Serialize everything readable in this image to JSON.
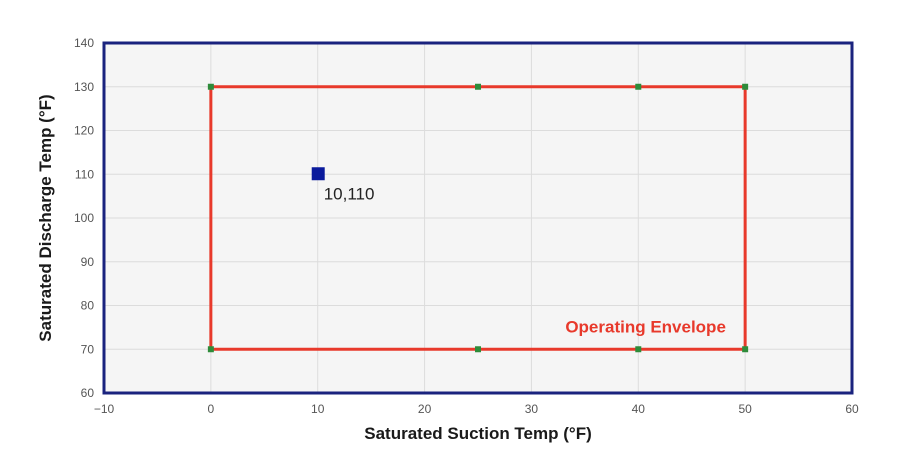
{
  "chart_data": {
    "type": "scatter",
    "title": "",
    "xlabel": "Saturated Suction Temp (°F)",
    "ylabel": "Saturated Discharge Temp (°F)",
    "xlim": [
      -10,
      60
    ],
    "ylim": [
      60,
      140
    ],
    "xticks": [
      -10,
      0,
      10,
      20,
      30,
      40,
      50,
      60
    ],
    "yticks": [
      60,
      70,
      80,
      90,
      100,
      110,
      120,
      130,
      140
    ],
    "grid": true,
    "envelope": {
      "label": "Operating Envelope",
      "color": "#e8392b",
      "vertex_color": "#2e8b3a",
      "points": [
        {
          "x": 0,
          "y": 130
        },
        {
          "x": 25,
          "y": 130
        },
        {
          "x": 40,
          "y": 130
        },
        {
          "x": 50,
          "y": 130
        },
        {
          "x": 50,
          "y": 70
        },
        {
          "x": 40,
          "y": 70
        },
        {
          "x": 25,
          "y": 70
        },
        {
          "x": 0,
          "y": 70
        }
      ]
    },
    "series": [
      {
        "points": [
          {
            "x": 10,
            "y": 110,
            "label": "10,110"
          }
        ],
        "color": "#0a1a9c"
      }
    ]
  },
  "colors": {
    "plot_background": "#f5f5f5",
    "plot_border": "#1a237e",
    "grid": "#dcdcdc"
  }
}
